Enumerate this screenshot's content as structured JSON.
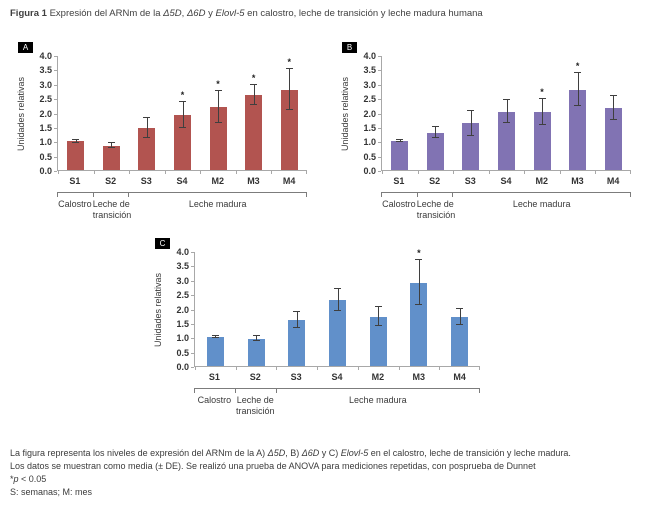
{
  "title": {
    "prefix": "Figura 1",
    "s1": " Expresión del ARNm de la ",
    "i1": "Δ5D",
    "s2": ", ",
    "i2": "Δ6D",
    "s3": " y ",
    "i3": "Elovl-5",
    "s4": " en calostro, leche de transición y leche madura humana"
  },
  "sig_marker": "*",
  "chart_data": [
    {
      "type": "bar",
      "panel": "A",
      "ylabel": "Unidades relativas",
      "ylim": [
        0,
        4.0
      ],
      "ytick_labels": [
        "4.0",
        "3.5",
        "3.0",
        "2.5",
        "2.0",
        "1.5",
        "1.0",
        "0.5",
        "0.0"
      ],
      "categories": [
        "S1",
        "S2",
        "S3",
        "S4",
        "M2",
        "M3",
        "M4"
      ],
      "values": [
        1.0,
        0.85,
        1.45,
        1.9,
        2.2,
        2.6,
        2.8
      ],
      "errors": [
        0.05,
        0.08,
        0.35,
        0.45,
        0.55,
        0.35,
        0.72
      ],
      "significant": [
        false,
        false,
        false,
        true,
        true,
        true,
        true
      ],
      "bar_color": "#b25450",
      "error_color": "#3f3f3f",
      "groups": [
        {
          "lines": [
            "Calostro"
          ],
          "span": 1
        },
        {
          "lines": [
            "Leche de",
            "transición"
          ],
          "span": 1
        },
        {
          "lines": [
            "Leche madura"
          ],
          "span": 5
        }
      ]
    },
    {
      "type": "bar",
      "panel": "B",
      "ylabel": "Unidades relativas",
      "ylim": [
        0,
        4.0
      ],
      "ytick_labels": [
        "4.0",
        "3.5",
        "3.0",
        "2.5",
        "2.0",
        "1.5",
        "1.0",
        "0.5",
        "0.0"
      ],
      "categories": [
        "S1",
        "S2",
        "S3",
        "S4",
        "M2",
        "M3",
        "M4"
      ],
      "values": [
        1.0,
        1.3,
        1.62,
        2.02,
        2.02,
        2.8,
        2.15
      ],
      "errors": [
        0.03,
        0.2,
        0.42,
        0.4,
        0.45,
        0.58,
        0.42
      ],
      "significant": [
        false,
        false,
        false,
        false,
        true,
        true,
        false
      ],
      "bar_color": "#8173b3",
      "error_color": "#3f3f3f",
      "groups": [
        {
          "lines": [
            "Calostro"
          ],
          "span": 1
        },
        {
          "lines": [
            "Leche de",
            "transición"
          ],
          "span": 1
        },
        {
          "lines": [
            "Leche madura"
          ],
          "span": 5
        }
      ]
    },
    {
      "type": "bar",
      "panel": "C",
      "ylabel": "Unidades relativas",
      "ylim": [
        0,
        4.0
      ],
      "ytick_labels": [
        "4.0",
        "3.5",
        "3.0",
        "2.5",
        "2.0",
        "1.5",
        "1.0",
        "0.5",
        "0.0"
      ],
      "categories": [
        "S1",
        "S2",
        "S3",
        "S4",
        "M2",
        "M3",
        "M4"
      ],
      "values": [
        1.0,
        0.95,
        1.6,
        2.3,
        1.72,
        2.9,
        1.72
      ],
      "errors": [
        0.03,
        0.08,
        0.27,
        0.37,
        0.32,
        0.78,
        0.28
      ],
      "significant": [
        false,
        false,
        false,
        false,
        false,
        true,
        false
      ],
      "bar_color": "#6190ca",
      "error_color": "#3f3f3f",
      "groups": [
        {
          "lines": [
            "Calostro"
          ],
          "span": 1
        },
        {
          "lines": [
            "Leche de",
            "transición"
          ],
          "span": 1
        },
        {
          "lines": [
            "Leche madura"
          ],
          "span": 5
        }
      ]
    }
  ],
  "caption": {
    "l1a": "La figura representa los niveles de expresión del ARNm de la A) ",
    "l1i1": "Δ5D",
    "l1b": ", B) ",
    "l1i2": "Δ6D",
    "l1c": " y C) ",
    "l1i3": "Elovl-5",
    "l1d": " en el calostro, leche de transición y leche madura.",
    "l2": "Los datos se muestran como media (± DE). Se realizó una prueba de ANOVA para mediciones repetidas, con posprueba de Dunnet",
    "l3a": "*",
    "l3i": "p",
    "l3b": " < 0.05",
    "l4": "S: semanas; M: mes"
  }
}
